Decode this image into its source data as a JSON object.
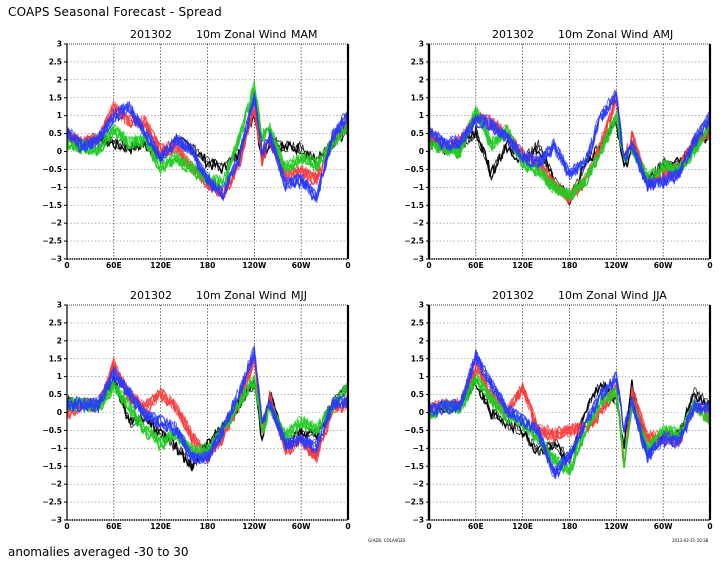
{
  "header": {
    "title": "COAPS Seasonal Forecast - Spread"
  },
  "footer": {
    "note": "anomalies averaged -30 to 30",
    "credit": "GrADS: COLA/IGES",
    "timestamp": "2013-03-11-10:38"
  },
  "colors": {
    "black": "#000000",
    "red": "#ff3b3b",
    "green": "#22cc22",
    "blue": "#2a3bff",
    "grid": "#888888"
  },
  "chart_data": [
    {
      "type": "line",
      "title_parts": [
        "201302",
        "10m  Zonal  Wind",
        "MAM"
      ],
      "xlabel": "",
      "ylabel": "",
      "xlim": [
        0,
        360
      ],
      "ylim": [
        -3,
        3
      ],
      "xticks": [
        "0",
        "60E",
        "120E",
        "180",
        "120W",
        "60W",
        "0"
      ],
      "yticks": [
        "3",
        "2.5",
        "2",
        "1.5",
        "1",
        "0.5",
        "0",
        "-0.5",
        "-1",
        "-1.5",
        "-2",
        "-2.5",
        "-3"
      ],
      "grid": true,
      "x": [
        0,
        20,
        40,
        60,
        80,
        100,
        120,
        140,
        160,
        180,
        200,
        220,
        240,
        250,
        260,
        280,
        300,
        320,
        340,
        360
      ],
      "series": [
        {
          "name": "black",
          "values": [
            0.5,
            0.2,
            0.4,
            0.2,
            0.1,
            0.2,
            -0.2,
            0.3,
            0.1,
            -0.3,
            -0.5,
            -0.1,
            1.1,
            -0.2,
            0.3,
            0.1,
            0.1,
            -0.3,
            0.2,
            0.6
          ]
        },
        {
          "name": "red",
          "values": [
            0.4,
            0.2,
            0.3,
            1.2,
            0.8,
            0.8,
            0.0,
            0.1,
            -0.5,
            -0.9,
            -1.2,
            -0.4,
            1.2,
            -0.3,
            0.3,
            -0.7,
            -0.6,
            -0.8,
            0.3,
            0.8
          ]
        },
        {
          "name": "green",
          "values": [
            0.2,
            0.1,
            0.0,
            0.6,
            0.2,
            0.3,
            -0.5,
            -0.2,
            -0.5,
            -0.8,
            -0.9,
            0.3,
            1.8,
            0.4,
            0.6,
            -0.5,
            -0.2,
            -0.4,
            0.2,
            0.7
          ]
        },
        {
          "name": "blue",
          "values": [
            0.5,
            0.1,
            0.3,
            1.0,
            1.2,
            0.5,
            -0.2,
            0.3,
            0.0,
            -0.8,
            -1.2,
            -0.2,
            1.5,
            0.0,
            0.4,
            -0.9,
            -0.8,
            -1.3,
            0.4,
            1.0
          ]
        }
      ]
    },
    {
      "type": "line",
      "title_parts": [
        "201302",
        "10m  Zonal  Wind",
        "AMJ"
      ],
      "xlabel": "",
      "ylabel": "",
      "xlim": [
        0,
        360
      ],
      "ylim": [
        -3,
        3
      ],
      "xticks": [
        "0",
        "60E",
        "120E",
        "180",
        "120W",
        "60W",
        "0"
      ],
      "yticks": [
        "3",
        "2.5",
        "2",
        "1.5",
        "1",
        "0.5",
        "0",
        "-0.5",
        "-1",
        "-1.5",
        "-2",
        "-2.5",
        "-3"
      ],
      "grid": true,
      "x": [
        0,
        20,
        40,
        60,
        80,
        100,
        120,
        140,
        160,
        180,
        200,
        220,
        240,
        250,
        260,
        280,
        300,
        320,
        340,
        360
      ],
      "series": [
        {
          "name": "black",
          "values": [
            0.4,
            0.1,
            0.2,
            0.6,
            -0.6,
            0.2,
            -0.2,
            0.2,
            -0.8,
            -1.3,
            -0.3,
            0.2,
            0.9,
            -0.5,
            0.2,
            -0.8,
            -0.3,
            -0.3,
            0.2,
            0.5
          ]
        },
        {
          "name": "red",
          "values": [
            0.5,
            0.1,
            0.3,
            1.0,
            0.8,
            0.5,
            -0.1,
            -0.3,
            -0.9,
            -1.3,
            -0.8,
            0.2,
            1.5,
            -0.2,
            0.5,
            -0.9,
            -0.6,
            -0.5,
            0.3,
            0.6
          ]
        },
        {
          "name": "green",
          "values": [
            0.2,
            0.1,
            0.0,
            1.2,
            0.2,
            0.6,
            -0.3,
            -0.5,
            -1.0,
            -1.2,
            -0.8,
            0.0,
            1.0,
            -0.3,
            0.1,
            -0.7,
            -0.4,
            -0.5,
            0.0,
            0.8
          ]
        },
        {
          "name": "blue",
          "values": [
            0.6,
            0.2,
            0.3,
            0.9,
            0.8,
            0.4,
            -0.1,
            -0.3,
            0.2,
            -0.6,
            -0.3,
            1.0,
            1.6,
            -0.2,
            0.2,
            -0.9,
            -0.8,
            -0.6,
            0.3,
            1.0
          ]
        }
      ]
    },
    {
      "type": "line",
      "title_parts": [
        "201302",
        "10m  Zonal  Wind",
        "MJJ"
      ],
      "xlabel": "",
      "ylabel": "",
      "xlim": [
        0,
        360
      ],
      "ylim": [
        -3,
        3
      ],
      "xticks": [
        "0",
        "60E",
        "120E",
        "180",
        "120W",
        "60W",
        "0"
      ],
      "yticks": [
        "3",
        "2.5",
        "2",
        "1.5",
        "1",
        "0.5",
        "0",
        "-0.5",
        "-1",
        "-1.5",
        "-2",
        "-2.5",
        "-3"
      ],
      "grid": true,
      "x": [
        0,
        20,
        40,
        60,
        80,
        100,
        120,
        140,
        160,
        180,
        200,
        220,
        240,
        250,
        260,
        280,
        300,
        320,
        340,
        360
      ],
      "series": [
        {
          "name": "black",
          "values": [
            0.4,
            0.3,
            0.3,
            1.0,
            -0.2,
            0.0,
            -0.5,
            -0.9,
            -1.4,
            -0.8,
            -0.3,
            0.3,
            0.9,
            -0.7,
            0.6,
            -0.8,
            -0.5,
            -0.5,
            0.3,
            0.8
          ]
        },
        {
          "name": "red",
          "values": [
            0.0,
            0.3,
            0.2,
            1.4,
            0.5,
            0.2,
            0.6,
            0.2,
            -0.6,
            -1.2,
            -0.6,
            0.3,
            1.6,
            -0.5,
            0.5,
            -1.0,
            -0.7,
            -1.2,
            0.2,
            0.3
          ]
        },
        {
          "name": "green",
          "values": [
            0.3,
            0.3,
            0.2,
            0.8,
            0.2,
            -0.4,
            -0.8,
            -0.5,
            -1.0,
            -1.0,
            -0.4,
            0.3,
            1.0,
            -0.4,
            0.2,
            -0.6,
            -0.2,
            -0.4,
            0.2,
            0.8
          ]
        },
        {
          "name": "blue",
          "values": [
            0.3,
            0.3,
            0.3,
            1.2,
            0.6,
            0.0,
            -0.2,
            -0.4,
            -1.2,
            -1.2,
            -0.4,
            0.6,
            1.8,
            -0.2,
            0.3,
            -0.8,
            -0.7,
            -0.9,
            0.3,
            0.4
          ]
        }
      ]
    },
    {
      "type": "line",
      "title_parts": [
        "201302",
        "10m  Zonal  Wind",
        "JJA"
      ],
      "xlabel": "",
      "ylabel": "",
      "xlim": [
        0,
        360
      ],
      "ylim": [
        -3,
        3
      ],
      "xticks": [
        "0",
        "60E",
        "120E",
        "180",
        "120W",
        "60W",
        "0"
      ],
      "yticks": [
        "3",
        "2.5",
        "2",
        "1.5",
        "1",
        "0.5",
        "0",
        "-0.5",
        "-1",
        "-1.5",
        "-2",
        "-2.5",
        "-3"
      ],
      "grid": true,
      "x": [
        0,
        20,
        40,
        60,
        80,
        100,
        120,
        140,
        160,
        180,
        200,
        220,
        240,
        250,
        260,
        280,
        300,
        320,
        340,
        360
      ],
      "series": [
        {
          "name": "black",
          "values": [
            0.2,
            0.3,
            0.3,
            1.0,
            0.1,
            -0.2,
            -0.4,
            -1.0,
            -0.7,
            -1.2,
            0.2,
            0.9,
            0.5,
            -0.8,
            0.9,
            -1.0,
            -0.5,
            -0.5,
            0.7,
            0.3
          ]
        },
        {
          "name": "red",
          "values": [
            0.2,
            0.3,
            0.3,
            1.4,
            0.6,
            0.1,
            0.8,
            -0.4,
            -0.5,
            -0.4,
            -0.3,
            0.1,
            0.8,
            -1.3,
            0.7,
            -0.6,
            -0.6,
            -0.7,
            0.3,
            0.0
          ]
        },
        {
          "name": "green",
          "values": [
            0.0,
            0.3,
            0.2,
            1.1,
            0.5,
            0.0,
            -0.2,
            -0.6,
            -1.2,
            -1.5,
            -0.4,
            0.4,
            0.7,
            -1.3,
            0.4,
            -0.9,
            -0.4,
            -0.5,
            0.3,
            -0.1
          ]
        },
        {
          "name": "blue",
          "values": [
            0.2,
            0.3,
            0.3,
            1.7,
            0.9,
            0.2,
            -0.1,
            -0.4,
            -1.6,
            -1.1,
            -0.2,
            0.6,
            1.1,
            -0.3,
            0.4,
            -1.1,
            -0.6,
            -0.7,
            0.3,
            0.2
          ]
        }
      ]
    }
  ]
}
